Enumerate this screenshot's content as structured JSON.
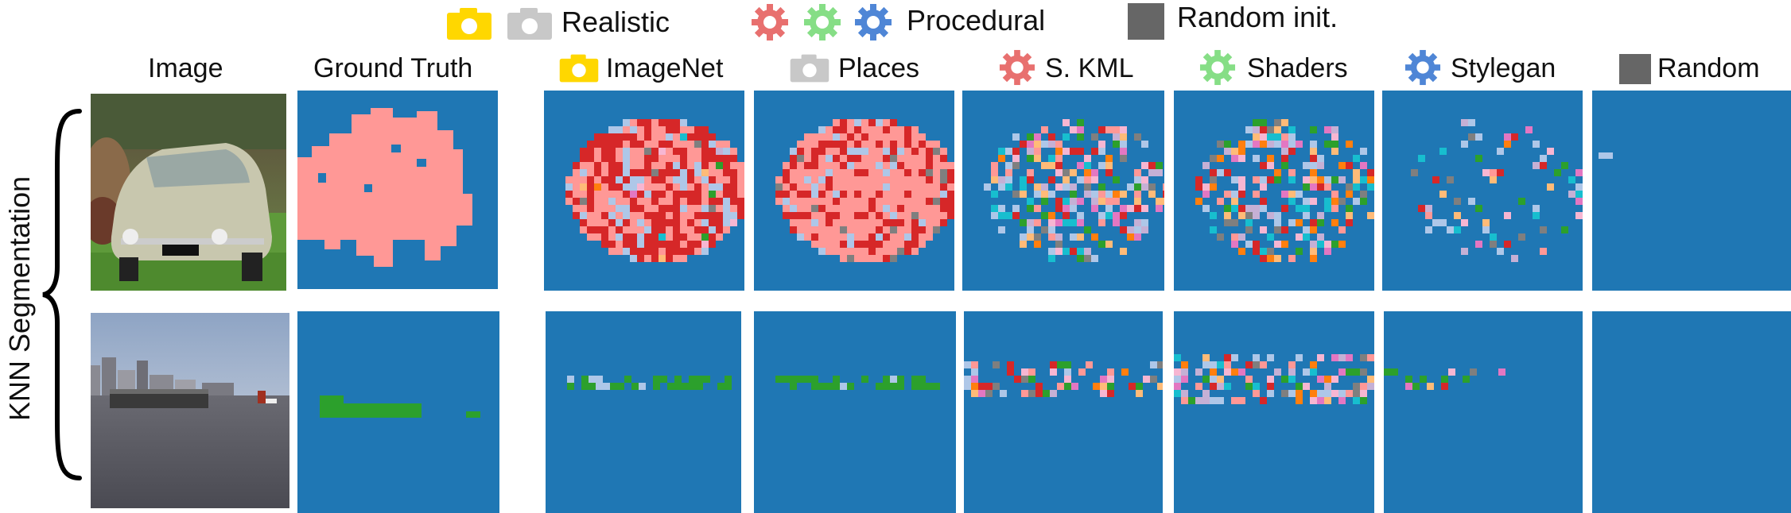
{
  "legend": {
    "realistic": {
      "label": "Realistic",
      "icons": [
        "camera-yellow-icon",
        "camera-gray-icon"
      ]
    },
    "procedural": {
      "label": "Procedural",
      "icons": [
        "gear-red-icon",
        "gear-green-icon",
        "gear-blue-icon"
      ]
    },
    "random_init": {
      "label": "Random init.",
      "icons": [
        "gray-square-icon"
      ]
    }
  },
  "columns": {
    "image": "Image",
    "ground_truth": "Ground Truth",
    "imagenet": "ImageNet",
    "places": "Places",
    "skml": "S. KML",
    "shaders": "Shaders",
    "stylegan": "Stylegan",
    "random": "Random"
  },
  "row_group_label": "KNN Segmentation",
  "colors": {
    "background": "#1f77b4",
    "car_gt": "#ff9896",
    "car_pred": "#d62728",
    "boat_gt": "#2ca02c",
    "noise_light": "#aec7e8",
    "camera_yellow": "#ffd700",
    "camera_gray": "#c8c8c8",
    "gear_red": "#e8706f",
    "gear_green": "#86de86",
    "gear_blue": "#4f86d6",
    "random_square": "#666666"
  },
  "rows": [
    {
      "name": "car-row",
      "photo_subject": "vintage car on grass"
    },
    {
      "name": "boat-row",
      "photo_subject": "barge on river with city skyline"
    }
  ]
}
